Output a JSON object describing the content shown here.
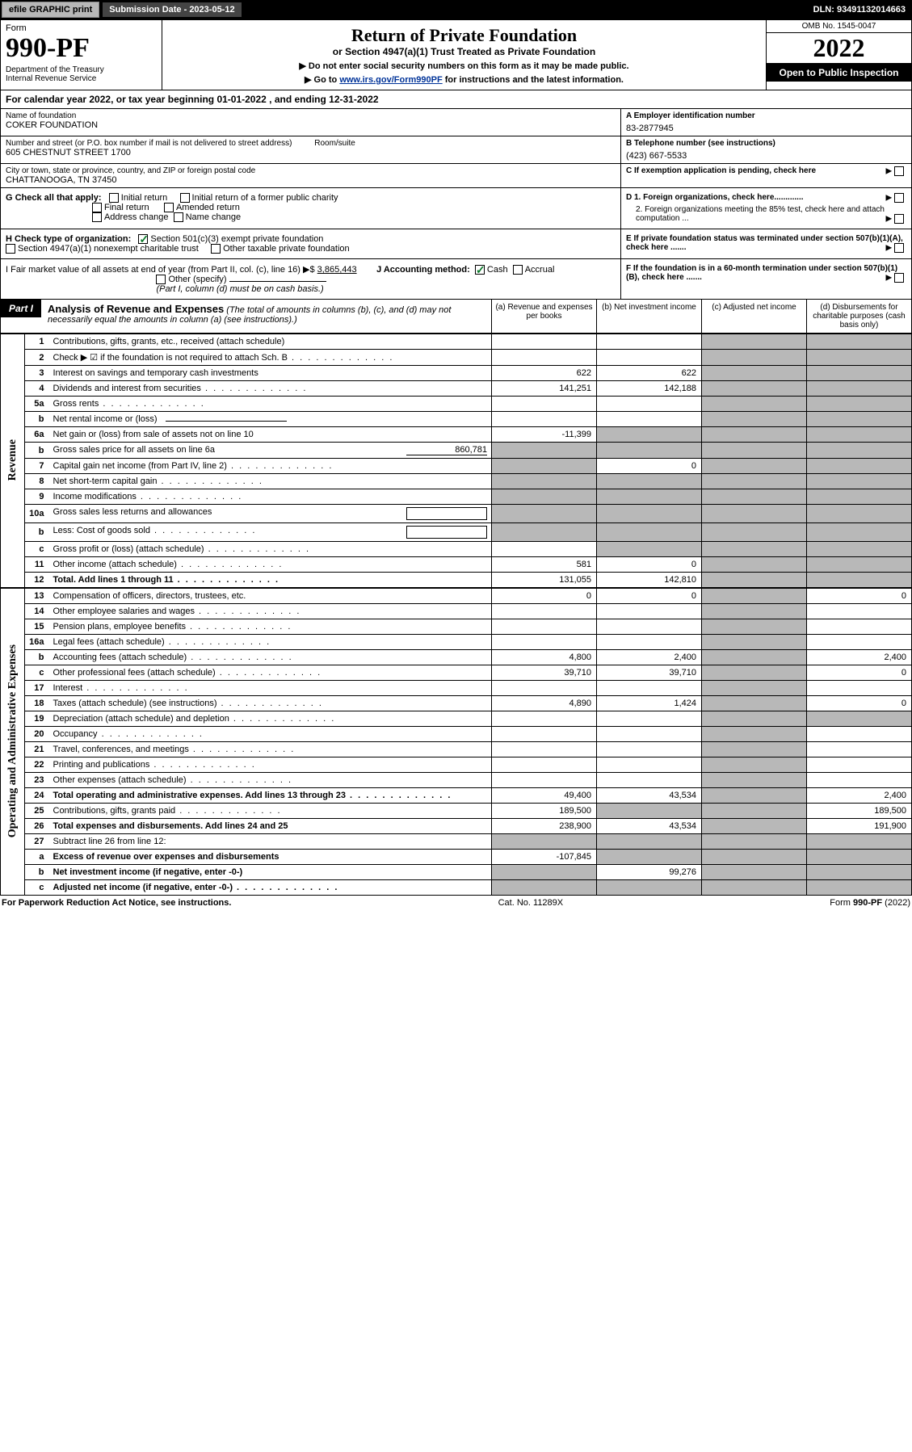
{
  "top": {
    "efile": "efile GRAPHIC print",
    "sub_label": "Submission Date - 2023-05-12",
    "dln": "DLN: 93491132014663"
  },
  "header": {
    "form_label": "Form",
    "form_num": "990-PF",
    "dept": "Department of the Treasury\nInternal Revenue Service",
    "title": "Return of Private Foundation",
    "sub": "or Section 4947(a)(1) Trust Treated as Private Foundation",
    "note1": "▶ Do not enter social security numbers on this form as it may be made public.",
    "note2_prefix": "▶ Go to ",
    "note2_link": "www.irs.gov/Form990PF",
    "note2_suffix": " for instructions and the latest information.",
    "omb": "OMB No. 1545-0047",
    "year": "2022",
    "open": "Open to Public Inspection"
  },
  "cal": "For calendar year 2022, or tax year beginning 01-01-2022                           , and ending 12-31-2022",
  "info": {
    "name_label": "Name of foundation",
    "name": "COKER FOUNDATION",
    "ein_label": "A Employer identification number",
    "ein": "83-2877945",
    "addr_label": "Number and street (or P.O. box number if mail is not delivered to street address)",
    "addr": "605 CHESTNUT STREET 1700",
    "room_label": "Room/suite",
    "tel_label": "B Telephone number (see instructions)",
    "tel": "(423) 667-5533",
    "city_label": "City or town, state or province, country, and ZIP or foreign postal code",
    "city": "CHATTANOOGA, TN  37450",
    "c_label": "C If exemption application is pending, check here"
  },
  "g": {
    "label": "G Check all that apply:",
    "o1": "Initial return",
    "o2": "Initial return of a former public charity",
    "o3": "Final return",
    "o4": "Amended return",
    "o5": "Address change",
    "o6": "Name change"
  },
  "d": {
    "d1": "D 1. Foreign organizations, check here.............",
    "d2": "2. Foreign organizations meeting the 85% test, check here and attach computation ..."
  },
  "h": {
    "label": "H Check type of organization:",
    "o1": "Section 501(c)(3) exempt private foundation",
    "o2": "Section 4947(a)(1) nonexempt charitable trust",
    "o3": "Other taxable private foundation"
  },
  "e": "E  If private foundation status was terminated under section 507(b)(1)(A), check here .......",
  "i": {
    "label": "I Fair market value of all assets at end of year (from Part II, col. (c), line 16) ▶$",
    "val": "3,865,443",
    "j_label": "J Accounting method:",
    "j_o1": "Cash",
    "j_o2": "Accrual",
    "j_o3": "Other (specify)",
    "j_note": "(Part I, column (d) must be on cash basis.)"
  },
  "f": "F  If the foundation is in a 60-month termination under section 507(b)(1)(B), check here .......",
  "part1": {
    "tag": "Part I",
    "title": "Analysis of Revenue and Expenses",
    "note": " (The total of amounts in columns (b), (c), and (d) may not necessarily equal the amounts in column (a) (see instructions).)",
    "ca": "(a)   Revenue and expenses per books",
    "cb": "(b)   Net investment income",
    "cc": "(c)   Adjusted net income",
    "cd": "(d)  Disbursements for charitable purposes (cash basis only)"
  },
  "sections": {
    "revenue": "Revenue",
    "expenses": "Operating and Administrative Expenses"
  },
  "rows": [
    {
      "n": "1",
      "d": "Contributions, gifts, grants, etc., received (attach schedule)",
      "a": "",
      "b": "",
      "dgrey": true
    },
    {
      "n": "2",
      "d": "Check ▶ ☑ if the foundation is not required to attach Sch. B",
      "dots": true
    },
    {
      "n": "3",
      "d": "Interest on savings and temporary cash investments",
      "a": "622",
      "b": "622"
    },
    {
      "n": "4",
      "d": "Dividends and interest from securities",
      "dots": true,
      "a": "141,251",
      "b": "142,188"
    },
    {
      "n": "5a",
      "d": "Gross rents",
      "dots": true
    },
    {
      "n": "b",
      "d": "Net rental income or (loss)",
      "bline": true
    },
    {
      "n": "6a",
      "d": "Net gain or (loss) from sale of assets not on line 10",
      "a": "-11,399",
      "bgrey": true
    },
    {
      "n": "b",
      "d": "Gross sales price for all assets on line 6a",
      "inline": "860,781",
      "allgrey": true
    },
    {
      "n": "7",
      "d": "Capital gain net income (from Part IV, line 2)",
      "dots": true,
      "agrey": true,
      "b": "0"
    },
    {
      "n": "8",
      "d": "Net short-term capital gain",
      "dots": true,
      "agrey": true,
      "bgrey": true
    },
    {
      "n": "9",
      "d": "Income modifications",
      "dots": true,
      "agrey": true,
      "bgrey": true
    },
    {
      "n": "10a",
      "d": "Gross sales less returns and allowances",
      "inlinebox": true,
      "allgrey": true
    },
    {
      "n": "b",
      "d": "Less: Cost of goods sold",
      "dots": true,
      "inlinebox": true,
      "allgrey": true
    },
    {
      "n": "c",
      "d": "Gross profit or (loss) (attach schedule)",
      "dots": true,
      "bgrey": true
    },
    {
      "n": "11",
      "d": "Other income (attach schedule)",
      "dots": true,
      "a": "581",
      "b": "0"
    },
    {
      "n": "12",
      "d": "Total. Add lines 1 through 11",
      "dots": true,
      "bold": true,
      "a": "131,055",
      "b": "142,810"
    }
  ],
  "exp_rows": [
    {
      "n": "13",
      "d": "Compensation of officers, directors, trustees, etc.",
      "a": "0",
      "b": "0",
      "dd": "0"
    },
    {
      "n": "14",
      "d": "Other employee salaries and wages",
      "dots": true
    },
    {
      "n": "15",
      "d": "Pension plans, employee benefits",
      "dots": true
    },
    {
      "n": "16a",
      "d": "Legal fees (attach schedule)",
      "dots": true
    },
    {
      "n": "b",
      "d": "Accounting fees (attach schedule)",
      "dots": true,
      "a": "4,800",
      "b": "2,400",
      "dd": "2,400"
    },
    {
      "n": "c",
      "d": "Other professional fees (attach schedule)",
      "dots": true,
      "a": "39,710",
      "b": "39,710",
      "dd": "0"
    },
    {
      "n": "17",
      "d": "Interest",
      "dots": true
    },
    {
      "n": "18",
      "d": "Taxes (attach schedule) (see instructions)",
      "dots": true,
      "a": "4,890",
      "b": "1,424",
      "dd": "0"
    },
    {
      "n": "19",
      "d": "Depreciation (attach schedule) and depletion",
      "dots": true,
      "ddgrey": true
    },
    {
      "n": "20",
      "d": "Occupancy",
      "dots": true
    },
    {
      "n": "21",
      "d": "Travel, conferences, and meetings",
      "dots": true
    },
    {
      "n": "22",
      "d": "Printing and publications",
      "dots": true
    },
    {
      "n": "23",
      "d": "Other expenses (attach schedule)",
      "dots": true
    },
    {
      "n": "24",
      "d": "Total operating and administrative expenses. Add lines 13 through 23",
      "dots": true,
      "bold": true,
      "a": "49,400",
      "b": "43,534",
      "dd": "2,400"
    },
    {
      "n": "25",
      "d": "Contributions, gifts, grants paid",
      "dots": true,
      "a": "189,500",
      "bgrey": true,
      "dd": "189,500"
    },
    {
      "n": "26",
      "d": "Total expenses and disbursements. Add lines 24 and 25",
      "bold": true,
      "a": "238,900",
      "b": "43,534",
      "dd": "191,900"
    },
    {
      "n": "27",
      "d": "Subtract line 26 from line 12:",
      "allgrey": true
    },
    {
      "n": "a",
      "d": "Excess of revenue over expenses and disbursements",
      "bold": true,
      "a": "-107,845",
      "bgrey": true,
      "cgrey": true,
      "ddgrey": true
    },
    {
      "n": "b",
      "d": "Net investment income (if negative, enter -0-)",
      "bold": true,
      "agrey": true,
      "b": "99,276",
      "cgrey": true,
      "ddgrey": true
    },
    {
      "n": "c",
      "d": "Adjusted net income (if negative, enter -0-)",
      "dots": true,
      "bold": true,
      "agrey": true,
      "bgrey": true,
      "ddgrey": true
    }
  ],
  "footer": {
    "left": "For Paperwork Reduction Act Notice, see instructions.",
    "mid": "Cat. No. 11289X",
    "right": "Form 990-PF (2022)"
  }
}
